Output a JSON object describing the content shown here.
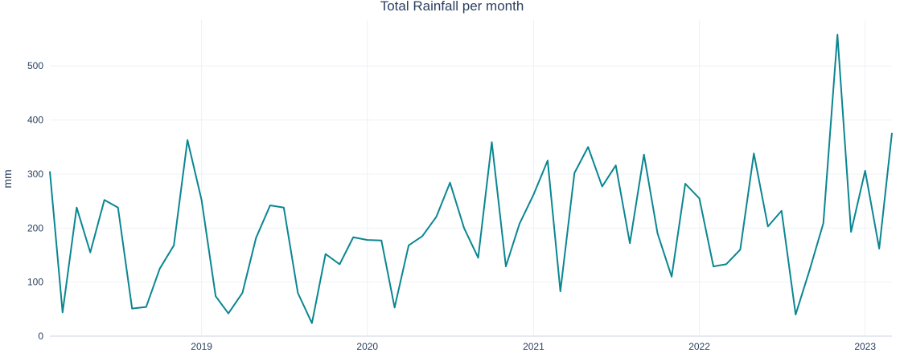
{
  "chart_data": {
    "type": "line",
    "title": "Total Rainfall per month",
    "xlabel": "",
    "ylabel": "mm",
    "ylim": [
      0,
      585
    ],
    "xlim": [
      "2018-02-01",
      "2023-03-01"
    ],
    "x_ticks": [
      "2019",
      "2020",
      "2021",
      "2022",
      "2023"
    ],
    "y_ticks": [
      0,
      100,
      200,
      300,
      400,
      500
    ],
    "grid": true,
    "legend": "none",
    "colors": {
      "line": "#0b8691",
      "grid": "#eef1f6",
      "zeroline": "#e6e9ef",
      "text": "#2a3f5f"
    },
    "series": [
      {
        "x": [
          "2018-02",
          "2018-03",
          "2018-04",
          "2018-05",
          "2018-06",
          "2018-07",
          "2018-08",
          "2018-09",
          "2018-10",
          "2018-11",
          "2018-12",
          "2019-01",
          "2019-02",
          "2019-03",
          "2019-04",
          "2019-05",
          "2019-06",
          "2019-07",
          "2019-08",
          "2019-09",
          "2019-10",
          "2019-11",
          "2019-12",
          "2020-01",
          "2020-02",
          "2020-03",
          "2020-04",
          "2020-05",
          "2020-06",
          "2020-07",
          "2020-08",
          "2020-09",
          "2020-10",
          "2020-11",
          "2020-12",
          "2021-01",
          "2021-02",
          "2021-03",
          "2021-04",
          "2021-05",
          "2021-06",
          "2021-07",
          "2021-08",
          "2021-09",
          "2021-10",
          "2021-11",
          "2021-12",
          "2022-01",
          "2022-02",
          "2022-03",
          "2022-04",
          "2022-05",
          "2022-06",
          "2022-07",
          "2022-08",
          "2022-09",
          "2022-10",
          "2022-11",
          "2022-12",
          "2023-01",
          "2023-02",
          "2023-03"
        ],
        "values": [
          305,
          44,
          238,
          155,
          252,
          238,
          51,
          54,
          125,
          168,
          363,
          252,
          74,
          42,
          80,
          182,
          242,
          238,
          80,
          24,
          152,
          133,
          183,
          178,
          177,
          53,
          168,
          185,
          221,
          284,
          200,
          145,
          359,
          129,
          208,
          262,
          325,
          83,
          302,
          350,
          277,
          316,
          172,
          336,
          190,
          110,
          282,
          255,
          129,
          133,
          160,
          338,
          203,
          232,
          40,
          123,
          209,
          558,
          193,
          306,
          162,
          376
        ]
      }
    ]
  }
}
